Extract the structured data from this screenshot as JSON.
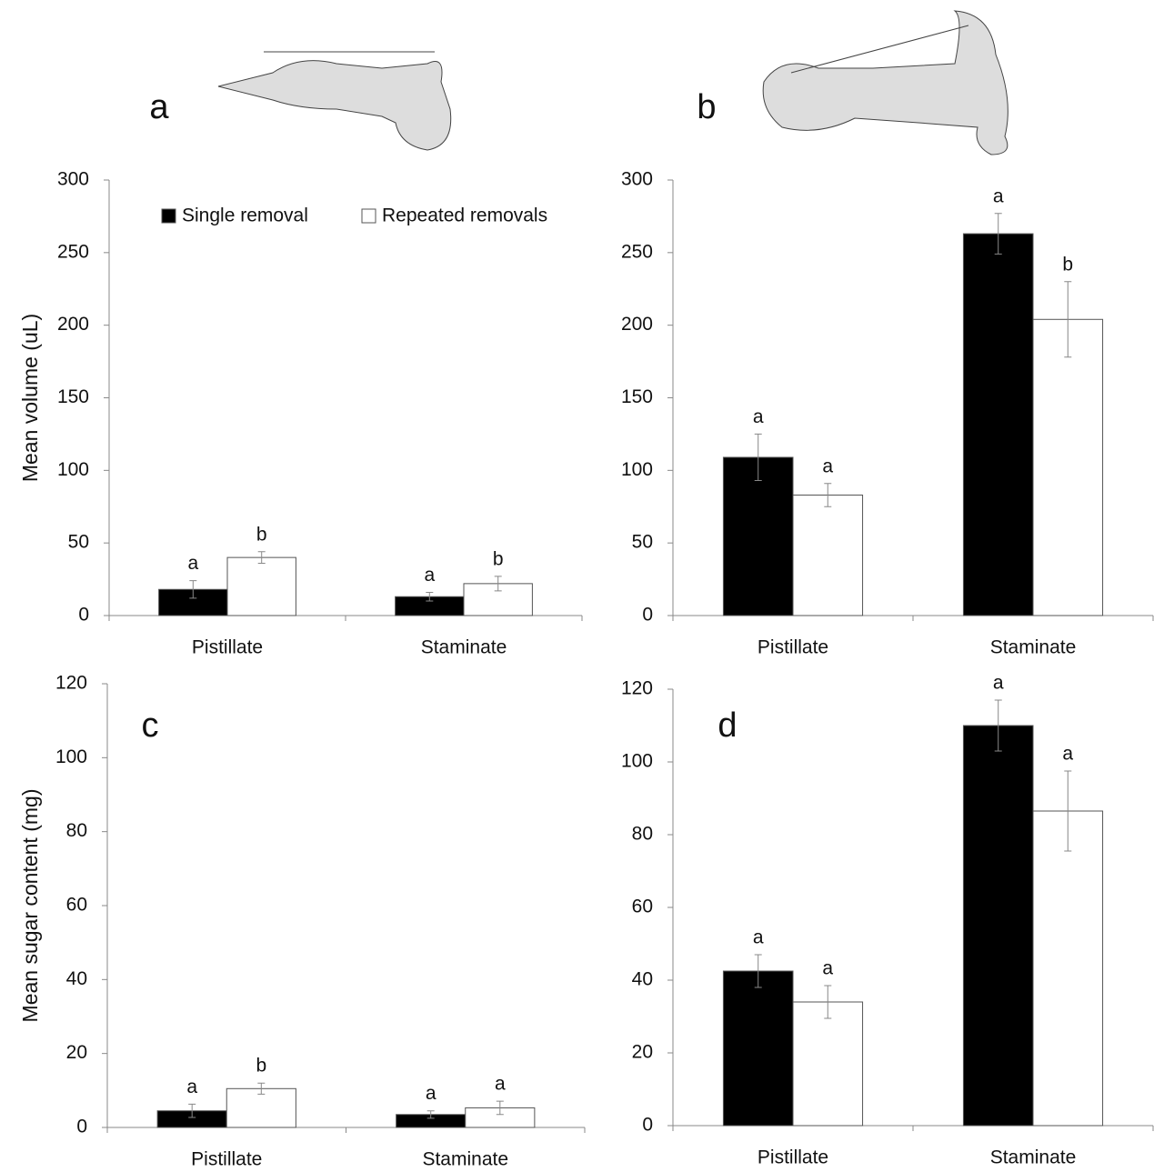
{
  "chart_data": [
    {
      "type": "bar",
      "panel_label": "a",
      "y_label": "Mean volume (uL)",
      "categories": [
        "Pistillate",
        "Staminate"
      ],
      "series": [
        {
          "name": "Single removal",
          "color": "#000000",
          "values": [
            18,
            13
          ],
          "errors": [
            6,
            3
          ],
          "letters": [
            "a",
            "a"
          ]
        },
        {
          "name": "Repeated removals",
          "color": "#ffffff",
          "values": [
            40,
            22
          ],
          "errors": [
            4,
            5
          ],
          "letters": [
            "b",
            "b"
          ]
        }
      ],
      "ylim": [
        0,
        300
      ],
      "yticks": [
        0,
        50,
        100,
        150,
        200,
        250,
        300
      ],
      "legend": "top"
    },
    {
      "type": "bar",
      "panel_label": "b",
      "categories": [
        "Pistillate",
        "Staminate"
      ],
      "series": [
        {
          "color": "#000000",
          "values": [
            109,
            263
          ],
          "errors": [
            16,
            14
          ],
          "letters": [
            "a",
            "a"
          ]
        },
        {
          "color": "#ffffff",
          "values": [
            83,
            204
          ],
          "errors": [
            8,
            26
          ],
          "letters": [
            "a",
            "b"
          ]
        }
      ],
      "ylim": [
        0,
        300
      ],
      "yticks": [
        0,
        50,
        100,
        150,
        200,
        250,
        300
      ]
    },
    {
      "type": "bar",
      "panel_label": "c",
      "y_label": "Mean sugar content (mg)",
      "categories": [
        "Pistillate",
        "Staminate"
      ],
      "series": [
        {
          "color": "#000000",
          "values": [
            4.5,
            3.5
          ],
          "errors": [
            1.8,
            1
          ],
          "letters": [
            "a",
            "a"
          ]
        },
        {
          "color": "#ffffff",
          "values": [
            10.5,
            5.3
          ],
          "errors": [
            1.5,
            1.8
          ],
          "letters": [
            "b",
            "a"
          ]
        }
      ],
      "ylim": [
        0,
        120
      ],
      "yticks": [
        0,
        20,
        40,
        60,
        80,
        100,
        120
      ]
    },
    {
      "type": "bar",
      "panel_label": "d",
      "categories": [
        "Pistillate",
        "Staminate"
      ],
      "series": [
        {
          "color": "#000000",
          "values": [
            42.5,
            110
          ],
          "errors": [
            4.5,
            7
          ],
          "letters": [
            "a",
            "a"
          ]
        },
        {
          "color": "#ffffff",
          "values": [
            34,
            86.5
          ],
          "errors": [
            4.5,
            11
          ],
          "letters": [
            "a",
            "a"
          ]
        }
      ],
      "ylim": [
        0,
        120
      ],
      "yticks": [
        0,
        20,
        40,
        60,
        80,
        100,
        120
      ]
    }
  ]
}
